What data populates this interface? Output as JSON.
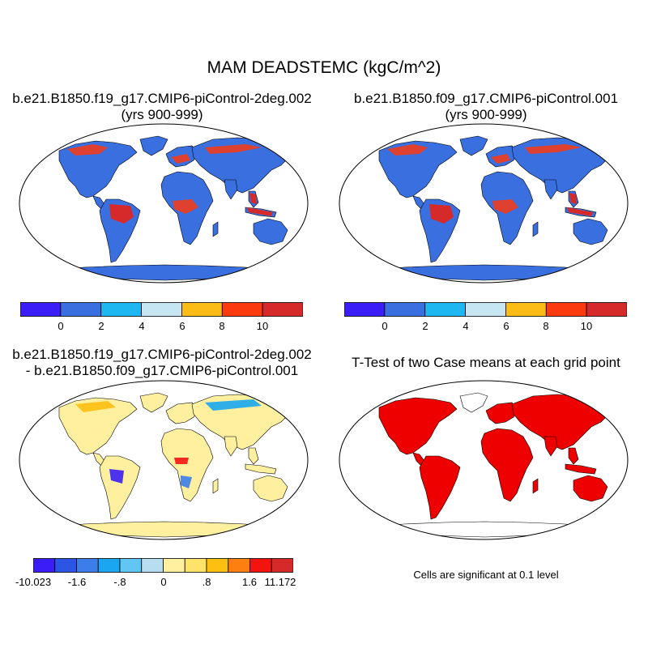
{
  "figure": {
    "title": "MAM DEADSTEMC (kgC/m^2)"
  },
  "panels": [
    {
      "title_line1": "b.e21.B1850.f19_g17.CMIP6-piControl-2deg.002",
      "title_line2": "(yrs 900-999)"
    },
    {
      "title_line1": "b.e21.B1850.f09_g17.CMIP6-piControl.001",
      "title_line2": "(yrs 900-999)"
    },
    {
      "title_line1": "b.e21.B1850.f19_g17.CMIP6-piControl-2deg.002",
      "title_line2": "- b.e21.B1850.f09_g17.CMIP6-piControl.001"
    },
    {
      "title_line1": "T-Test of two Case means at each grid point",
      "title_line2": ""
    }
  ],
  "colorbars": {
    "case": {
      "colors": [
        "#3b1ef5",
        "#3a6fe0",
        "#1fb7f2",
        "#c6e6f4",
        "#fcbc18",
        "#fb3a0f",
        "#d62a2a"
      ],
      "ticks": [
        "0",
        "2",
        "4",
        "6",
        "8",
        "10"
      ]
    },
    "diff": {
      "colors": [
        "#3b1ef5",
        "#2c55e6",
        "#3d7de9",
        "#1aa6f0",
        "#62c6f5",
        "#b7ddf1",
        "#fff0a0",
        "#fde36a",
        "#fdbf12",
        "#fd7f0f",
        "#f3140f",
        "#d62a2a"
      ],
      "ticks": [
        "-10.023",
        "-1.6",
        "-.8",
        "0",
        ".8",
        "1.6",
        "11.172"
      ]
    }
  },
  "colors": {
    "land_case": "#3a6fe0",
    "land_diff": "#fff0a0",
    "significant": "#ee0000"
  },
  "note": "Cells are significant at 0.1 level"
}
